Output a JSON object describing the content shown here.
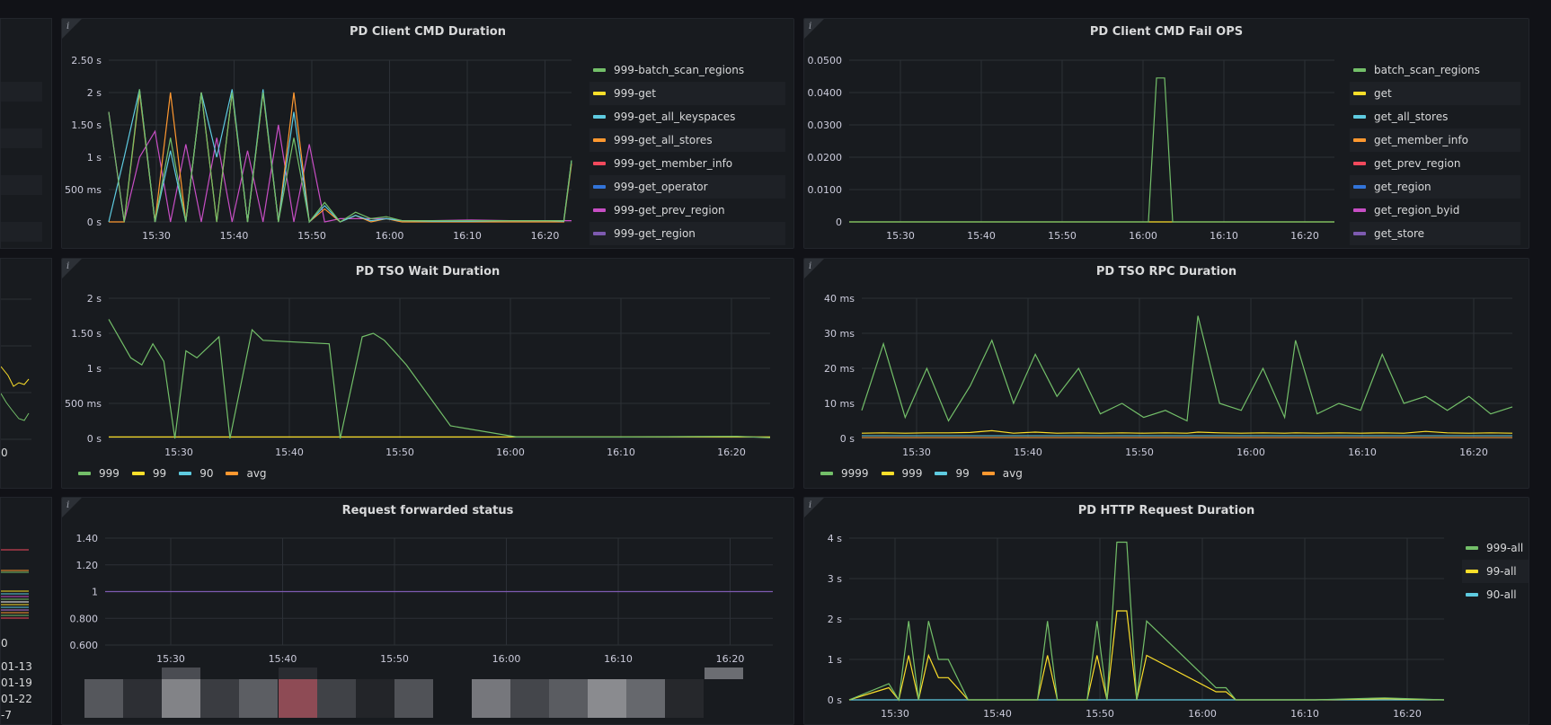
{
  "panels": {
    "p1": {
      "title": "PD Client CMD Duration",
      "info": "i",
      "yticks": [
        "2.50 s",
        "2 s",
        "1.50 s",
        "1 s",
        "500 ms",
        "0 s"
      ],
      "xticks": [
        "15:30",
        "15:40",
        "15:50",
        "16:00",
        "16:10",
        "16:20"
      ],
      "legend": [
        {
          "name": "999-batch_scan_regions",
          "color": "#73bf69"
        },
        {
          "name": "999-get",
          "color": "#fade2a"
        },
        {
          "name": "999-get_all_keyspaces",
          "color": "#5ecbe0"
        },
        {
          "name": "999-get_all_stores",
          "color": "#ff9830"
        },
        {
          "name": "999-get_member_info",
          "color": "#f2495c"
        },
        {
          "name": "999-get_operator",
          "color": "#3274d9"
        },
        {
          "name": "999-get_prev_region",
          "color": "#c74ec4"
        },
        {
          "name": "999-get_region",
          "color": "#7d5ab0"
        }
      ]
    },
    "p2": {
      "title": "PD Client CMD Fail OPS",
      "info": "i",
      "yticks": [
        "0.0500",
        "0.0400",
        "0.0300",
        "0.0200",
        "0.0100",
        "0"
      ],
      "xticks": [
        "15:30",
        "15:40",
        "15:50",
        "16:00",
        "16:10",
        "16:20"
      ],
      "legend": [
        {
          "name": "batch_scan_regions",
          "color": "#73bf69"
        },
        {
          "name": "get",
          "color": "#fade2a"
        },
        {
          "name": "get_all_stores",
          "color": "#5ecbe0"
        },
        {
          "name": "get_member_info",
          "color": "#ff9830"
        },
        {
          "name": "get_prev_region",
          "color": "#f2495c"
        },
        {
          "name": "get_region",
          "color": "#3274d9"
        },
        {
          "name": "get_region_byid",
          "color": "#c74ec4"
        },
        {
          "name": "get_store",
          "color": "#7d5ab0"
        }
      ]
    },
    "p3": {
      "title": "PD TSO Wait Duration",
      "info": "i",
      "yticks": [
        "2 s",
        "1.50 s",
        "1 s",
        "500 ms",
        "0 s"
      ],
      "xticks": [
        "15:30",
        "15:40",
        "15:50",
        "16:00",
        "16:10",
        "16:20"
      ],
      "legend": [
        {
          "name": "999",
          "color": "#73bf69"
        },
        {
          "name": "99",
          "color": "#fade2a"
        },
        {
          "name": "90",
          "color": "#5ecbe0"
        },
        {
          "name": "avg",
          "color": "#ff9830"
        }
      ]
    },
    "p4": {
      "title": "PD TSO RPC Duration",
      "info": "i",
      "yticks": [
        "40 ms",
        "30 ms",
        "20 ms",
        "10 ms",
        "0 s"
      ],
      "xticks": [
        "15:30",
        "15:40",
        "15:50",
        "16:00",
        "16:10",
        "16:20"
      ],
      "legend": [
        {
          "name": "9999",
          "color": "#73bf69"
        },
        {
          "name": "999",
          "color": "#fade2a"
        },
        {
          "name": "99",
          "color": "#5ecbe0"
        },
        {
          "name": "avg",
          "color": "#ff9830"
        }
      ]
    },
    "p5": {
      "title": "Request forwarded status",
      "info": "i",
      "yticks": [
        "1.40",
        "1.20",
        "1",
        "0.800",
        "0.600"
      ],
      "xticks": [
        "15:30",
        "15:40",
        "15:50",
        "16:00",
        "16:10",
        "16:20"
      ]
    },
    "p6": {
      "title": "PD HTTP Request Duration",
      "info": "i",
      "yticks": [
        "4 s",
        "3 s",
        "2 s",
        "1 s",
        "0 s"
      ],
      "xticks": [
        "15:30",
        "15:40",
        "15:50",
        "16:00",
        "16:10",
        "16:20"
      ],
      "legend": [
        {
          "name": "999-all",
          "color": "#73bf69"
        },
        {
          "name": "99-all",
          "color": "#fade2a"
        },
        {
          "name": "90-all",
          "color": "#5ecbe0"
        }
      ]
    }
  },
  "left_strip": {
    "mid_label": "0",
    "bottom_label_top": "0",
    "bottom_labels": [
      "01-13",
      "01-19",
      "01-22",
      "-7"
    ]
  },
  "chart_data": [
    {
      "type": "line",
      "title": "PD Client CMD Duration",
      "xlabel": "",
      "ylabel": "",
      "x": [
        "15:23",
        "15:25",
        "15:27",
        "15:29",
        "15:31",
        "15:33",
        "15:35",
        "15:37",
        "15:39",
        "15:41",
        "15:43",
        "15:45",
        "15:47",
        "15:49",
        "15:51",
        "15:53",
        "15:55",
        "15:57",
        "15:59",
        "16:01",
        "16:05",
        "16:10",
        "16:15",
        "16:20",
        "16:22",
        "16:23"
      ],
      "ylim": [
        0,
        2.5
      ],
      "y_unit": "s",
      "series": [
        {
          "name": "999-batch_scan_regions",
          "values": [
            1.7,
            0,
            2.05,
            0,
            1.3,
            0,
            2.0,
            0,
            2.0,
            0,
            2.0,
            0,
            1.3,
            0,
            0.3,
            0,
            0.15,
            0.05,
            0.08,
            0.02,
            0.02,
            0.02,
            0.02,
            0.02,
            0.02,
            0.95
          ]
        },
        {
          "name": "999-get_all_keyspaces",
          "values": [
            0,
            1.0,
            2.05,
            0,
            1.1,
            0,
            2.0,
            1.0,
            2.05,
            0,
            2.05,
            0,
            1.7,
            0,
            0.25,
            0,
            0.1,
            0.02,
            0.05,
            0.02,
            0.01,
            0.01,
            0.02,
            0.02,
            0.01,
            0.95
          ]
        },
        {
          "name": "999-get_all_stores",
          "values": [
            0,
            0,
            2.0,
            0,
            2.0,
            0,
            2.0,
            0,
            2.0,
            0,
            2.0,
            0,
            2.0,
            0,
            0.2,
            0,
            0.1,
            0,
            0.05,
            0,
            0,
            0,
            0,
            0,
            0,
            0.9
          ]
        },
        {
          "name": "999-get_prev_region",
          "values": [
            1.7,
            0,
            1.0,
            1.4,
            0,
            1.2,
            0,
            1.3,
            0,
            1.1,
            0,
            1.5,
            0,
            1.2,
            0,
            0.05,
            0.05,
            0.05,
            0.05,
            0.02,
            0.02,
            0.03,
            0.02,
            0.02,
            0.02,
            0.02
          ]
        }
      ]
    },
    {
      "type": "line",
      "title": "PD Client CMD Fail OPS",
      "xlabel": "",
      "ylabel": "",
      "x": [
        "15:23",
        "15:30",
        "15:40",
        "15:50",
        "16:00",
        "16:01",
        "16:02",
        "16:03",
        "16:10",
        "16:20",
        "16:23"
      ],
      "ylim": [
        0,
        0.05
      ],
      "series": [
        {
          "name": "batch_scan_regions",
          "values": [
            0,
            0,
            0,
            0,
            0,
            0.0445,
            0.0445,
            0,
            0,
            0,
            0
          ]
        },
        {
          "name": "get",
          "values": [
            0,
            0,
            0,
            0,
            0,
            0,
            0,
            0,
            0,
            0,
            0
          ]
        }
      ]
    },
    {
      "type": "line",
      "title": "PD TSO Wait Duration",
      "xlabel": "",
      "ylabel": "",
      "x": [
        "15:23",
        "15:25",
        "15:26",
        "15:27",
        "15:28",
        "15:29",
        "15:30",
        "15:31",
        "15:33",
        "15:34",
        "15:36",
        "15:37",
        "15:43",
        "15:44",
        "15:46",
        "15:47",
        "15:48",
        "15:50",
        "15:54",
        "16:00",
        "16:10",
        "16:20",
        "16:23"
      ],
      "ylim": [
        0,
        2
      ],
      "y_unit": "s",
      "series": [
        {
          "name": "999",
          "values": [
            1.7,
            1.15,
            1.05,
            1.35,
            1.1,
            0,
            1.25,
            1.15,
            1.45,
            0,
            1.55,
            1.4,
            1.35,
            0,
            1.45,
            1.5,
            1.4,
            1.05,
            0.18,
            0.02,
            0.02,
            0.03,
            0.01
          ]
        },
        {
          "name": "99",
          "values": [
            0.02,
            0.02,
            0.02,
            0.02,
            0.02,
            0.02,
            0.02,
            0.02,
            0.02,
            0.02,
            0.02,
            0.02,
            0.02,
            0.02,
            0.02,
            0.02,
            0.02,
            0.02,
            0.02,
            0.02,
            0.02,
            0.02,
            0.02
          ]
        }
      ]
    },
    {
      "type": "line",
      "title": "PD TSO RPC Duration",
      "xlabel": "",
      "ylabel": "",
      "x": [
        "15:23",
        "15:25",
        "15:27",
        "15:29",
        "15:31",
        "15:33",
        "15:35",
        "15:37",
        "15:39",
        "15:41",
        "15:43",
        "15:45",
        "15:47",
        "15:49",
        "15:51",
        "15:53",
        "15:54",
        "15:56",
        "15:58",
        "16:00",
        "16:02",
        "16:03",
        "16:05",
        "16:07",
        "16:09",
        "16:11",
        "16:13",
        "16:15",
        "16:17",
        "16:19",
        "16:21",
        "16:23"
      ],
      "ylim": [
        0,
        40
      ],
      "y_unit": "ms",
      "series": [
        {
          "name": "9999",
          "values": [
            8,
            27,
            6,
            20,
            5,
            15,
            28,
            10,
            24,
            12,
            20,
            7,
            10,
            6,
            8,
            5,
            35,
            10,
            8,
            20,
            6,
            28,
            7,
            10,
            8,
            24,
            10,
            12,
            8,
            12,
            7,
            9
          ]
        },
        {
          "name": "999",
          "values": [
            1.5,
            1.6,
            1.5,
            1.6,
            1.6,
            1.7,
            2.2,
            1.5,
            1.8,
            1.5,
            1.6,
            1.5,
            1.6,
            1.5,
            1.6,
            1.5,
            1.8,
            1.6,
            1.5,
            1.6,
            1.5,
            1.6,
            1.5,
            1.6,
            1.5,
            1.6,
            1.5,
            2.0,
            1.6,
            1.5,
            1.6,
            1.5
          ]
        }
      ]
    },
    {
      "type": "line",
      "title": "Request forwarded status",
      "xlabel": "",
      "ylabel": "",
      "x": [
        "15:23",
        "16:23"
      ],
      "ylim": [
        0.6,
        1.4
      ],
      "series": [
        {
          "values": [
            1,
            1
          ]
        }
      ]
    },
    {
      "type": "line",
      "title": "PD HTTP Request Duration",
      "xlabel": "",
      "ylabel": "",
      "x": [
        "15:23",
        "15:27",
        "15:28",
        "15:29",
        "15:30",
        "15:31",
        "15:32",
        "15:33",
        "15:35",
        "15:42",
        "15:43",
        "15:44",
        "15:47",
        "15:48",
        "15:49",
        "15:50",
        "15:51",
        "15:52",
        "15:53",
        "16:00",
        "16:01",
        "16:02",
        "16:10",
        "16:17",
        "16:23"
      ],
      "ylim": [
        0,
        4
      ],
      "y_unit": "s",
      "series": [
        {
          "name": "999-all",
          "values": [
            0,
            0.4,
            0,
            1.95,
            0,
            1.95,
            1.0,
            1.0,
            0,
            0,
            1.95,
            0,
            0,
            1.95,
            0,
            3.9,
            3.9,
            0,
            1.95,
            0.3,
            0.3,
            0,
            0,
            0.05,
            0
          ]
        },
        {
          "name": "99-all",
          "values": [
            0,
            0.3,
            0,
            1.1,
            0,
            1.1,
            0.55,
            0.55,
            0,
            0,
            1.1,
            0,
            0,
            1.1,
            0,
            2.2,
            2.2,
            0,
            1.1,
            0.2,
            0.2,
            0,
            0,
            0.03,
            0
          ]
        },
        {
          "name": "90-all",
          "values": [
            0,
            0,
            0,
            0,
            0,
            0,
            0,
            0,
            0,
            0,
            0,
            0,
            0,
            0,
            0,
            0,
            0,
            0,
            0,
            0,
            0,
            0,
            0,
            0,
            0
          ]
        }
      ]
    }
  ]
}
